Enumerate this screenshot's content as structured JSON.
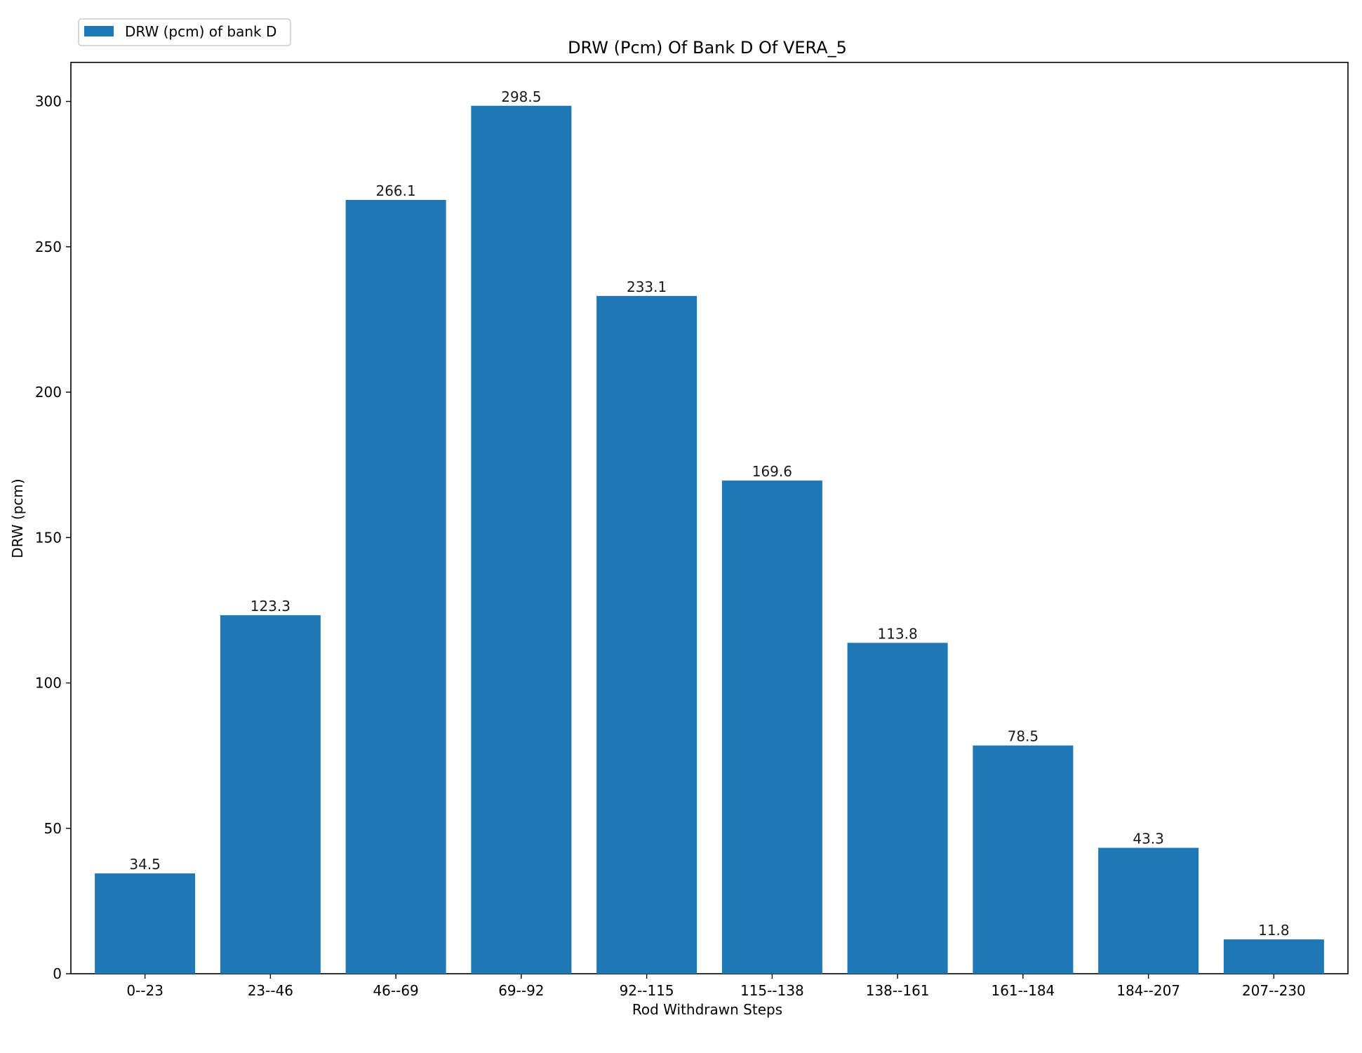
{
  "chart_data": {
    "type": "bar",
    "title": "DRW (Pcm) Of Bank D Of VERA_5",
    "xlabel": "Rod Withdrawn Steps",
    "ylabel": "DRW (pcm)",
    "categories": [
      "0--23",
      "23--46",
      "46--69",
      "69--92",
      "92--115",
      "115--138",
      "138--161",
      "161--184",
      "184--207",
      "207--230"
    ],
    "series": [
      {
        "name": "DRW (pcm) of bank D",
        "values": [
          34.5,
          123.3,
          266.1,
          298.5,
          233.1,
          169.6,
          113.8,
          78.5,
          43.3,
          11.8
        ],
        "data_labels": [
          "34.5",
          "123.3",
          "266.1",
          "298.5",
          "233.1",
          "169.6",
          "113.8",
          "78.5",
          "43.3",
          "11.8"
        ]
      }
    ],
    "ylim": [
      0,
      313.4
    ],
    "yticks": [
      0,
      50,
      100,
      150,
      200,
      250,
      300
    ],
    "grid": false,
    "legend_position": "top-left",
    "colors": {
      "bar": "#1f77b4",
      "axis": "#000000"
    }
  }
}
